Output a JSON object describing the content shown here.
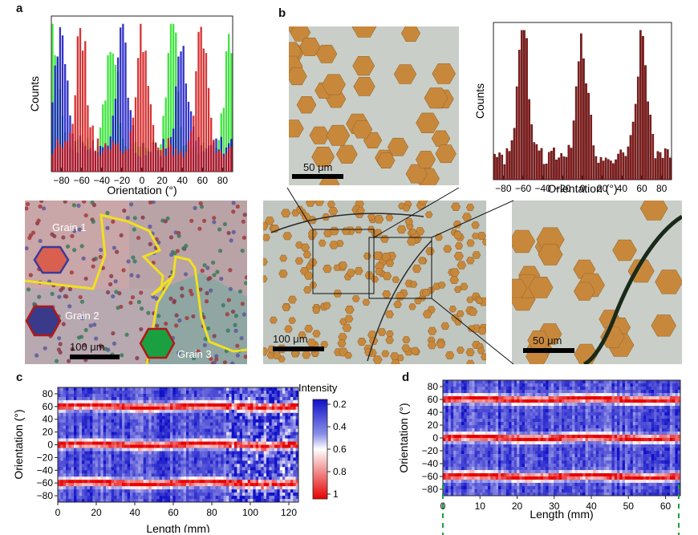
{
  "labels": {
    "a": "a",
    "b": "b",
    "c": "c",
    "d": "d"
  },
  "scale_bars": {
    "b_top": "50 μm",
    "b_right": "50 μm",
    "b_center": "100 μm",
    "a_photo": "100 μm"
  },
  "grains": {
    "g1": "Grain 1",
    "g2": "Grain 2",
    "g3": "Grain 3"
  },
  "colorbar": {
    "title": "Intensity",
    "ticks": [
      "0.2",
      "0.4",
      "0.6",
      "0.8",
      "1"
    ]
  },
  "colors": {
    "red": "#d01010",
    "blue": "#1010c0",
    "green": "#20e020",
    "copper": "#c8883c"
  },
  "chart_data": [
    {
      "id": "a_hist",
      "type": "bar",
      "xlabel": "Orientation (°)",
      "ylabel": "Counts",
      "xlim": [
        -90,
        90
      ],
      "x_ticks": [
        -80,
        -60,
        -40,
        -20,
        0,
        20,
        40,
        60,
        80
      ],
      "series": [
        {
          "color": "#20e020",
          "peaks": [
            -88,
            -30,
            30,
            88
          ]
        },
        {
          "color": "#1010c0",
          "peaks": [
            -80,
            -20,
            40
          ]
        },
        {
          "color": "#d01010",
          "peaks": [
            -60,
            0,
            60
          ]
        }
      ]
    },
    {
      "id": "b_hist",
      "type": "bar",
      "xlabel": "Orientation (°)",
      "ylabel": "Counts",
      "xlim": [
        -90,
        90
      ],
      "x_ticks": [
        -80,
        -60,
        -40,
        -20,
        0,
        20,
        40,
        60,
        80
      ],
      "series": [
        {
          "color": "#8b1a1a",
          "peaks": [
            -60,
            0,
            60
          ]
        }
      ]
    },
    {
      "id": "c_map",
      "type": "heatmap",
      "xlabel": "Length (mm)",
      "ylabel": "Orientation (°)",
      "xlim": [
        0,
        125
      ],
      "ylim": [
        -90,
        90
      ],
      "x_ticks": [
        0,
        20,
        40,
        60,
        80,
        100,
        120
      ],
      "y_ticks": [
        80,
        60,
        40,
        20,
        0,
        -20,
        -40,
        -60,
        -80
      ],
      "colorscale": [
        0.2,
        1
      ]
    },
    {
      "id": "d_map",
      "type": "heatmap",
      "xlabel": "Length (mm)",
      "ylabel": "Orientation (°)",
      "xlim": [
        0,
        64
      ],
      "ylim": [
        -90,
        90
      ],
      "x_ticks": [
        0,
        10,
        20,
        30,
        40,
        50,
        60
      ],
      "y_ticks": [
        80,
        60,
        40,
        20,
        0,
        -20,
        -40,
        -60,
        -80
      ],
      "colorscale": [
        0.2,
        1
      ]
    }
  ]
}
